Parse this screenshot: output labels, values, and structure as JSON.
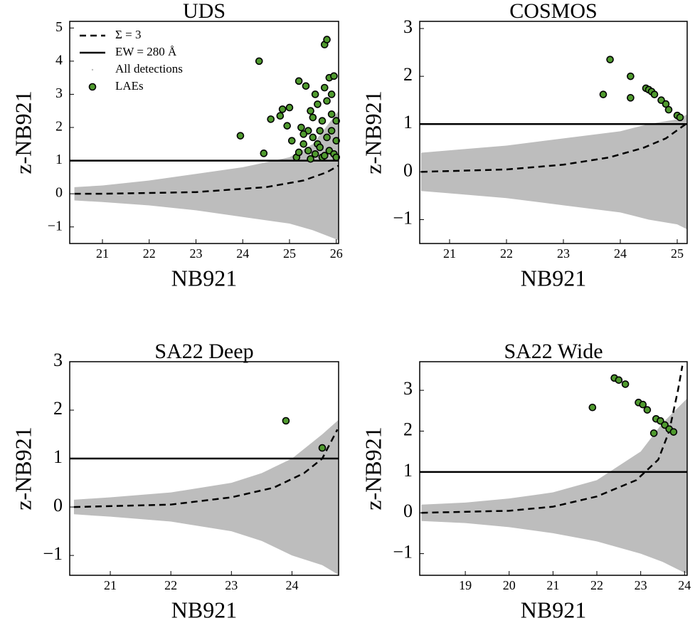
{
  "chart_data": [
    {
      "type": "scatter",
      "title": "UDS",
      "xlabel": "NB921",
      "ylabel": "z-NB921",
      "xlim": [
        20.3,
        26.05
      ],
      "ylim": [
        -1.5,
        5.2
      ],
      "xticks": [
        21,
        22,
        23,
        24,
        25,
        26
      ],
      "yticks": [
        {
          "value": -1,
          "label": "−1"
        },
        0,
        1,
        2,
        3,
        4,
        5
      ],
      "legend": "upper left",
      "series": [
        {
          "name": "Σ = 3",
          "style": "dashed",
          "color": "#000000",
          "x": [
            20.4,
            21,
            23,
            24.5,
            25.3,
            25.8,
            26.05
          ],
          "values": [
            0,
            0,
            0.05,
            0.2,
            0.4,
            0.65,
            0.85
          ]
        },
        {
          "name": "EW = 280 Å",
          "style": "hline",
          "color": "#000000",
          "values": [
            1
          ]
        },
        {
          "name": "All detections",
          "style": "band",
          "color": "#bdbdbd",
          "x": [
            20.4,
            21,
            22,
            23,
            24,
            25,
            25.5,
            26.05
          ],
          "high": [
            0.2,
            0.25,
            0.4,
            0.6,
            0.8,
            1.1,
            1.5,
            2.5
          ],
          "low": [
            -0.2,
            -0.25,
            -0.35,
            -0.5,
            -0.7,
            -0.9,
            -1.1,
            -1.4
          ]
        },
        {
          "name": "LAEs",
          "style": "points",
          "color": "#4f9a2e",
          "x": [
            23.95,
            24.35,
            24.45,
            24.6,
            24.8,
            24.85,
            25.0,
            24.95,
            25.05,
            25.15,
            25.2,
            25.25,
            25.3,
            25.35,
            25.4,
            25.4,
            25.45,
            25.5,
            25.5,
            25.55,
            25.55,
            25.6,
            25.6,
            25.65,
            25.7,
            25.7,
            25.75,
            25.75,
            25.8,
            25.8,
            25.8,
            25.85,
            25.85,
            25.9,
            25.9,
            25.95,
            25.95,
            26.0,
            26.0,
            25.65,
            25.2,
            25.45,
            25.9,
            25.75,
            25.3,
            26.0
          ],
          "values": [
            1.75,
            4.0,
            1.22,
            2.25,
            2.35,
            2.55,
            2.6,
            2.05,
            1.6,
            1.1,
            3.4,
            2.0,
            1.5,
            3.25,
            1.9,
            1.3,
            2.5,
            2.3,
            1.7,
            3.0,
            1.2,
            2.7,
            1.5,
            1.9,
            2.2,
            1.1,
            4.5,
            3.2,
            4.65,
            1.7,
            2.8,
            1.3,
            3.5,
            2.4,
            1.9,
            3.55,
            1.2,
            2.2,
            1.6,
            1.4,
            1.25,
            1.05,
            3.0,
            1.15,
            1.8,
            1.1
          ]
        }
      ]
    },
    {
      "type": "scatter",
      "title": "COSMOS",
      "xlabel": "NB921",
      "ylabel": "z-NB921",
      "xlim": [
        20.475,
        25.175
      ],
      "ylim": [
        -1.5,
        3.15
      ],
      "xticks": [
        21,
        22,
        23,
        24,
        25
      ],
      "yticks": [
        {
          "value": -1,
          "label": "−1"
        },
        0,
        1,
        2,
        3
      ],
      "series": [
        {
          "style": "dashed",
          "color": "#000000",
          "x": [
            20.5,
            22,
            23,
            23.8,
            24.4,
            24.8,
            25.15
          ],
          "values": [
            0,
            0.05,
            0.15,
            0.3,
            0.5,
            0.7,
            1.0
          ]
        },
        {
          "style": "hline",
          "color": "#000000",
          "values": [
            1
          ]
        },
        {
          "style": "band",
          "color": "#bdbdbd",
          "x": [
            20.5,
            21,
            22,
            23,
            24,
            24.5,
            25,
            25.17
          ],
          "high": [
            0.4,
            0.45,
            0.55,
            0.7,
            0.85,
            1.0,
            1.1,
            1.2
          ],
          "low": [
            -0.4,
            -0.45,
            -0.55,
            -0.7,
            -0.85,
            -1.0,
            -1.1,
            -1.2
          ]
        },
        {
          "style": "points",
          "color": "#4f9a2e",
          "x": [
            23.7,
            23.82,
            24.18,
            24.18,
            24.45,
            24.5,
            24.55,
            24.6,
            24.72,
            24.8,
            24.85,
            25.0,
            25.05
          ],
          "values": [
            1.62,
            2.35,
            2.0,
            1.55,
            1.75,
            1.72,
            1.68,
            1.62,
            1.5,
            1.42,
            1.3,
            1.18,
            1.14
          ]
        }
      ]
    },
    {
      "type": "scatter",
      "title": "SA22 Deep",
      "xlabel": "NB921",
      "ylabel": "z-NB921",
      "xlim": [
        20.33,
        24.77
      ],
      "ylim": [
        -1.41,
        3.0
      ],
      "xticks": [
        21,
        22,
        23,
        24
      ],
      "yticks": [
        {
          "value": -1,
          "label": "−1"
        },
        0,
        1,
        2,
        3
      ],
      "series": [
        {
          "style": "dashed",
          "color": "#000000",
          "x": [
            20.4,
            22,
            23,
            23.7,
            24.2,
            24.5,
            24.75
          ],
          "values": [
            0,
            0.05,
            0.2,
            0.4,
            0.7,
            1.0,
            1.6
          ]
        },
        {
          "style": "hline",
          "color": "#000000",
          "values": [
            1
          ]
        },
        {
          "style": "band",
          "color": "#bdbdbd",
          "x": [
            20.4,
            21,
            22,
            23,
            23.5,
            24,
            24.5,
            24.77
          ],
          "high": [
            0.15,
            0.2,
            0.3,
            0.5,
            0.7,
            1.0,
            1.5,
            1.8
          ],
          "low": [
            -0.15,
            -0.2,
            -0.3,
            -0.5,
            -0.7,
            -1.0,
            -1.2,
            -1.4
          ]
        },
        {
          "style": "points",
          "color": "#4f9a2e",
          "x": [
            23.9,
            24.5
          ],
          "values": [
            1.78,
            1.22
          ]
        }
      ]
    },
    {
      "type": "scatter",
      "title": "SA22 Wide",
      "xlabel": "NB921",
      "ylabel": "z-NB921",
      "xlim": [
        17.96,
        24.06
      ],
      "ylim": [
        -1.53,
        3.7
      ],
      "xticks": [
        19,
        20,
        21,
        22,
        23,
        24
      ],
      "yticks": [
        {
          "value": -1,
          "label": "−1"
        },
        0,
        1,
        2,
        3
      ],
      "series": [
        {
          "style": "dashed",
          "color": "#000000",
          "x": [
            18,
            20,
            21,
            22,
            22.9,
            23.4,
            23.65,
            23.85,
            23.95
          ],
          "values": [
            0,
            0.05,
            0.15,
            0.4,
            0.8,
            1.3,
            2.0,
            3.0,
            3.6
          ]
        },
        {
          "style": "hline",
          "color": "#000000",
          "values": [
            1
          ]
        },
        {
          "style": "band",
          "color": "#bdbdbd",
          "x": [
            18,
            19,
            20,
            21,
            22,
            23,
            23.5,
            24.06
          ],
          "high": [
            0.2,
            0.25,
            0.35,
            0.5,
            0.8,
            1.5,
            2.2,
            2.8
          ],
          "low": [
            -0.2,
            -0.25,
            -0.35,
            -0.5,
            -0.7,
            -1.0,
            -1.2,
            -1.5
          ]
        },
        {
          "style": "points",
          "color": "#4f9a2e",
          "x": [
            21.9,
            22.4,
            22.5,
            22.65,
            22.95,
            23.05,
            23.15,
            23.3,
            23.35,
            23.45,
            23.55,
            23.65,
            23.75
          ],
          "values": [
            2.58,
            3.3,
            3.25,
            3.15,
            2.7,
            2.65,
            2.52,
            1.95,
            2.3,
            2.25,
            2.15,
            2.05,
            1.98
          ]
        }
      ]
    }
  ]
}
